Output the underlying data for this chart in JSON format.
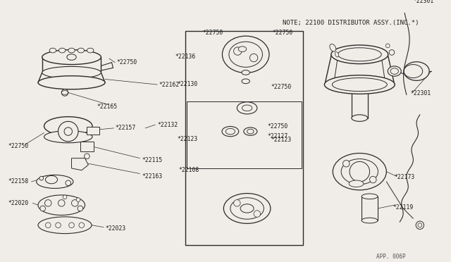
{
  "note_text": "NOTE; 22100 DISTRIBUTOR ASSY.(INC.*)",
  "page_ref": "APP. 006P",
  "bg_color": "#f0ede8",
  "line_color": "#2a2a2a",
  "text_color": "#1a1a1a",
  "figsize": [
    6.4,
    3.72
  ],
  "dpi": 100,
  "label_fs": 5.8
}
